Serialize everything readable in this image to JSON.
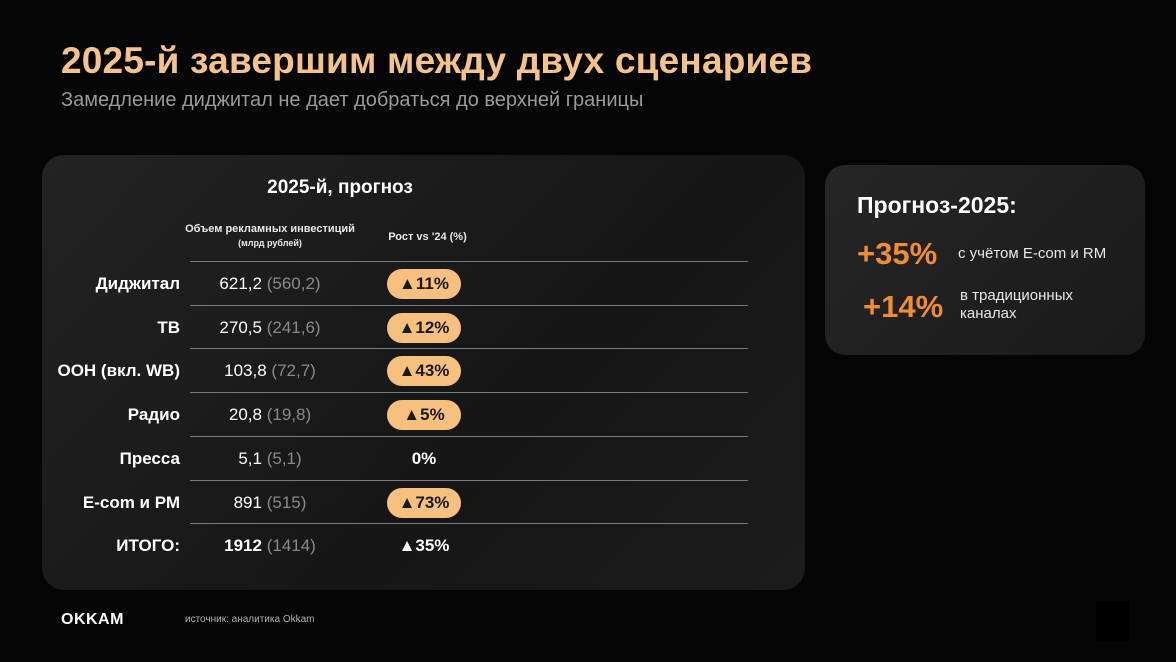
{
  "header": {
    "title": "2025-й завершим между двух сценариев",
    "subtitle": "Замедление диджитал не дает добраться до верхней границы"
  },
  "table": {
    "title": "2025-й, прогноз",
    "col_volume": "Объем рекламных инвестиций",
    "col_volume_unit": "(млрд рублей)",
    "col_growth": "Рост vs '24 (%)",
    "rows": [
      {
        "label": "Диджитал",
        "value": "621,2",
        "prev": "(560,2)",
        "growth": "▲11%",
        "highlight": true
      },
      {
        "label": "ТВ",
        "value": "270,5",
        "prev": "(241,6)",
        "growth": "▲12%",
        "highlight": true
      },
      {
        "label": "ООН (вкл. WB)",
        "value": "103,8",
        "prev": "(72,7)",
        "growth": "▲43%",
        "highlight": true
      },
      {
        "label": "Радио",
        "value": "20,8",
        "prev": "(19,8)",
        "growth": "▲5%",
        "highlight": true
      },
      {
        "label": "Пресса",
        "value": "5,1",
        "prev": "(5,1)",
        "growth": "0%",
        "highlight": false
      },
      {
        "label": "E-com  и РМ",
        "value": "891",
        "prev": "(515)",
        "growth": "▲73%",
        "highlight": true
      },
      {
        "label": "ИТОГО:",
        "value": "1912",
        "prev": "(1414)",
        "growth": "▲35%",
        "highlight": false
      }
    ]
  },
  "forecast": {
    "title": "Прогноз-2025:",
    "items": [
      {
        "value": "+35%",
        "text": "с учётом E-com и RM"
      },
      {
        "value": "+14%",
        "text": "в традиционных каналах"
      }
    ]
  },
  "footer": {
    "logo": "OKKAM",
    "source": "источник: аналитика Okkam"
  },
  "colors": {
    "accent": "#f08c34",
    "title": "#f4c28a",
    "badge": "#f7c07f"
  }
}
